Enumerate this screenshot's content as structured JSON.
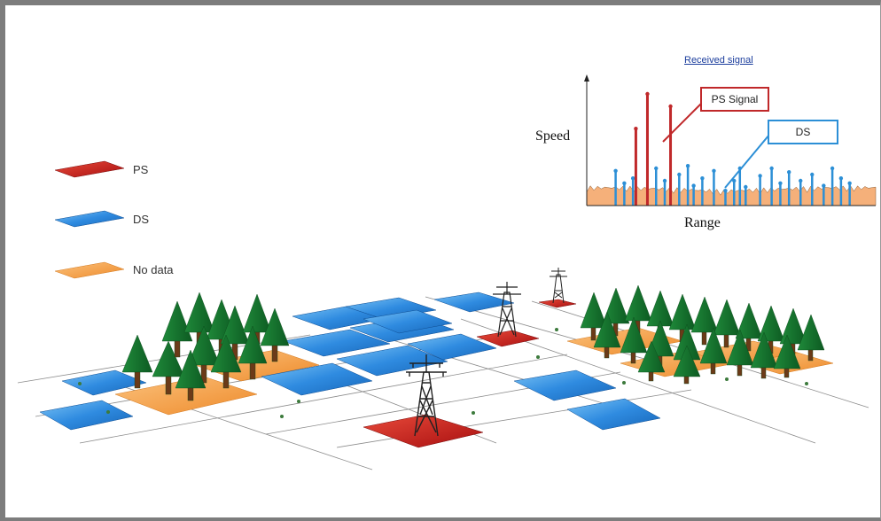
{
  "legend": {
    "items": [
      {
        "label": "PS",
        "color": "#c41a1a"
      },
      {
        "label": "DS",
        "color": "#2a7fd4"
      },
      {
        "label": "No data",
        "color": "#f39a3a"
      }
    ]
  },
  "chart": {
    "title": "Received signal",
    "ylabel": "Speed",
    "xlabel": "Range",
    "callout_ps": "PS Signal",
    "callout_ds": "DS"
  },
  "chart_data": {
    "type": "bar",
    "title": "Received signal",
    "xlabel": "Range",
    "ylabel": "Speed",
    "series": [
      {
        "name": "PS Signal",
        "color": "#c0282a",
        "x": [
          0.17,
          0.21,
          0.29
        ],
        "values": [
          0.62,
          0.9,
          0.8
        ]
      },
      {
        "name": "DS",
        "color": "#2c8fd6",
        "x": [
          0.1,
          0.13,
          0.16,
          0.24,
          0.27,
          0.32,
          0.35,
          0.37,
          0.4,
          0.44,
          0.48,
          0.51,
          0.53,
          0.55,
          0.6,
          0.64,
          0.67,
          0.7,
          0.74,
          0.78,
          0.82,
          0.85,
          0.88,
          0.91
        ],
        "values": [
          0.28,
          0.18,
          0.22,
          0.3,
          0.2,
          0.25,
          0.32,
          0.16,
          0.22,
          0.28,
          0.12,
          0.2,
          0.3,
          0.15,
          0.24,
          0.3,
          0.18,
          0.27,
          0.2,
          0.25,
          0.16,
          0.3,
          0.22,
          0.18
        ]
      }
    ],
    "background": {
      "name": "noise",
      "color": "#f5b07a"
    },
    "grid": false,
    "legend": "callouts"
  }
}
